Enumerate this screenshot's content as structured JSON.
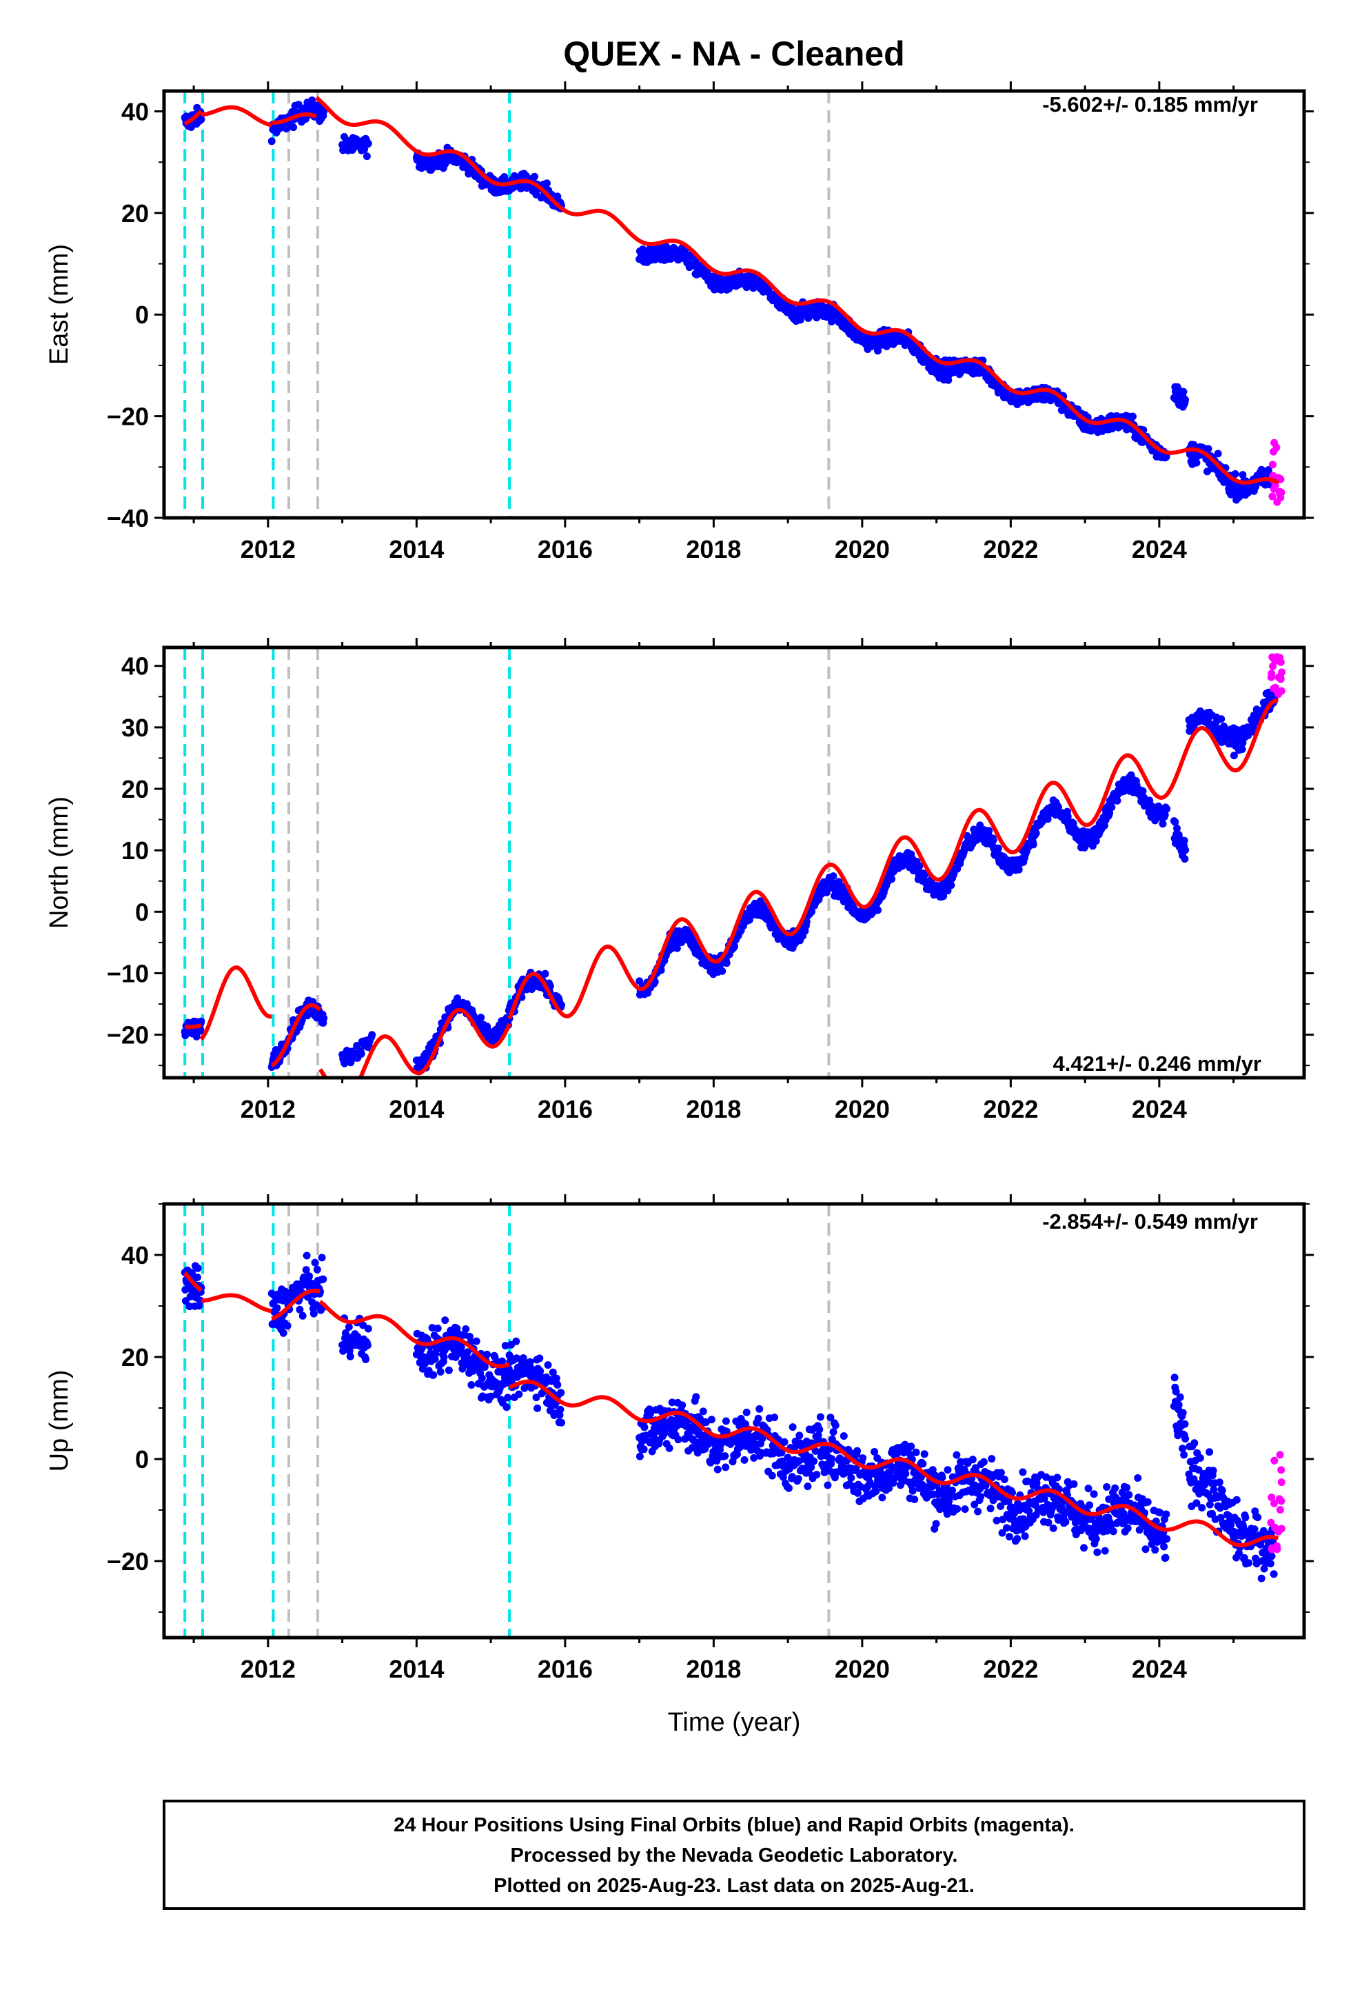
{
  "title": "QUEX  - NA - Cleaned",
  "xlabel": "Time (year)",
  "footer": {
    "line1": "24 Hour Positions Using Final Orbits (blue) and Rapid Orbits (magenta).",
    "line2": "Processed by the Nevada Geodetic Laboratory.",
    "line3": "Plotted on 2025-Aug-23. Last data on 2025-Aug-21."
  },
  "colors": {
    "final": "#0000ff",
    "rapid": "#ff00ff",
    "model": "#ff0000",
    "equipment_change": "#00e5e5",
    "earthquake": "#c0c0c0"
  },
  "chart_data": [
    {
      "type": "scatter",
      "component": "east",
      "ylabel": "East (mm)",
      "rate": "-5.602+/- 0.185 mm/yr",
      "xlim": [
        2010.6,
        2025.95
      ],
      "ylim": [
        -40,
        44
      ],
      "xticks": [
        "2012",
        "2014",
        "2016",
        "2018",
        "2020",
        "2022",
        "2024"
      ],
      "yticks": [
        "−40",
        "−20",
        "0",
        "20",
        "40"
      ],
      "ytick_values": [
        -40,
        -20,
        0,
        20,
        40
      ],
      "segments": [
        {
          "x0": 2010.88,
          "x1": 2011.1,
          "start": 38.5,
          "end": 40.5,
          "amp": 1.2,
          "noise": 1.2,
          "n": 40
        },
        {
          "x0": 2012.05,
          "x1": 2012.75,
          "start": 38.0,
          "end": 39.0,
          "amp": 1.5,
          "noise": 1.3,
          "n": 90
        },
        {
          "x0": 2013.0,
          "x1": 2013.35,
          "start": 34.5,
          "end": 33.0,
          "amp": 1.0,
          "noise": 1.2,
          "n": 40
        },
        {
          "x0": 2014.0,
          "x1": 2015.95,
          "start": 32.0,
          "end": 22.5,
          "amp": 1.5,
          "noise": 1.1,
          "n": 260
        },
        {
          "x0": 2017.0,
          "x1": 2024.1,
          "start": 13.5,
          "end": -26.0,
          "amp": 1.5,
          "noise": 1.2,
          "n": 950
        },
        {
          "x0": 2024.2,
          "x1": 2024.35,
          "start": -14.5,
          "end": -17.5,
          "amp": 0.5,
          "noise": 1.3,
          "n": 25
        },
        {
          "x0": 2024.4,
          "x1": 2025.55,
          "start": -28.5,
          "end": -34.5,
          "amp": 2.0,
          "noise": 1.5,
          "n": 160
        }
      ],
      "model_segments": [
        {
          "x0": 2010.88,
          "x1": 2011.1,
          "start": 38.0,
          "end": 41.0,
          "amp": 1.0
        },
        {
          "x0": 2011.1,
          "x1": 2012.05,
          "start": 40.5,
          "end": 38.5,
          "amp": 1.2
        },
        {
          "x0": 2012.05,
          "x1": 2012.65,
          "start": 39.0,
          "end": 38.0,
          "amp": 1.2
        },
        {
          "x0": 2012.65,
          "x1": 2025.6,
          "start": 41.5,
          "end": -34.5,
          "amp": 1.5
        }
      ],
      "rapid": {
        "x0": 2025.5,
        "x1": 2025.65,
        "center": -30.0,
        "spread": 7.0,
        "n": 18
      },
      "equipment_changes": [
        2010.88,
        2011.12,
        2012.07,
        2015.25
      ],
      "earthquakes": [
        2012.28,
        2012.67,
        2019.55
      ]
    },
    {
      "type": "scatter",
      "component": "north",
      "ylabel": "North (mm)",
      "rate": "4.421+/- 0.246 mm/yr",
      "xlim": [
        2010.6,
        2025.95
      ],
      "ylim": [
        -27,
        43
      ],
      "xticks": [
        "2012",
        "2014",
        "2016",
        "2018",
        "2020",
        "2022",
        "2024"
      ],
      "yticks": [
        "−20",
        "−10",
        "0",
        "10",
        "20",
        "30",
        "40"
      ],
      "ytick_values": [
        -20,
        -10,
        0,
        10,
        20,
        30,
        40
      ],
      "segments": [
        {
          "x0": 2010.88,
          "x1": 2011.1,
          "start": -19.0,
          "end": -18.5,
          "amp": 0.5,
          "noise": 1.0,
          "n": 40
        },
        {
          "x0": 2012.05,
          "x1": 2012.75,
          "start": -21.0,
          "end": -18.0,
          "amp": 3.0,
          "noise": 1.0,
          "n": 90
        },
        {
          "x0": 2013.0,
          "x1": 2013.4,
          "start": -23.0,
          "end": -21.5,
          "amp": 0.8,
          "noise": 1.0,
          "n": 40
        },
        {
          "x0": 2014.0,
          "x1": 2015.95,
          "start": -21.5,
          "end": -12.5,
          "amp": 3.5,
          "noise": 1.0,
          "n": 260
        },
        {
          "x0": 2017.0,
          "x1": 2024.1,
          "start": -9.5,
          "end": 19.5,
          "amp": 3.5,
          "noise": 1.0,
          "n": 950
        },
        {
          "x0": 2024.2,
          "x1": 2024.35,
          "start": 13.5,
          "end": 10.0,
          "amp": 0.5,
          "noise": 1.5,
          "n": 25
        },
        {
          "x0": 2024.4,
          "x1": 2025.55,
          "start": 28.5,
          "end": 32.0,
          "amp": 2.5,
          "noise": 1.2,
          "n": 160
        }
      ],
      "model_segments": [
        {
          "x0": 2010.88,
          "x1": 2011.1,
          "start": -18.5,
          "end": -18.0,
          "amp": 0.5
        },
        {
          "x0": 2011.1,
          "x1": 2012.05,
          "start": -16.0,
          "end": -12.0,
          "amp": 5.0
        },
        {
          "x0": 2012.05,
          "x1": 2012.7,
          "start": -21.5,
          "end": -18.0,
          "amp": 3.5
        },
        {
          "x0": 2012.7,
          "x1": 2015.25,
          "start": -28.0,
          "end": -17.0,
          "amp": 4.0
        },
        {
          "x0": 2015.25,
          "x1": 2025.6,
          "start": -16.0,
          "end": 30.0,
          "amp": 4.5
        }
      ],
      "rapid": {
        "x0": 2025.5,
        "x1": 2025.65,
        "center": 38.5,
        "spread": 3.5,
        "n": 18
      },
      "equipment_changes": [
        2010.88,
        2011.12,
        2012.07,
        2015.25
      ],
      "earthquakes": [
        2012.28,
        2012.67,
        2019.55
      ]
    },
    {
      "type": "scatter",
      "component": "up",
      "ylabel": "Up (mm)",
      "rate": "-2.854+/- 0.549 mm/yr",
      "xlim": [
        2010.6,
        2025.95
      ],
      "ylim": [
        -35,
        50
      ],
      "xticks": [
        "2012",
        "2014",
        "2016",
        "2018",
        "2020",
        "2022",
        "2024"
      ],
      "yticks": [
        "−20",
        "0",
        "20",
        "40"
      ],
      "ytick_values": [
        -20,
        0,
        20,
        40
      ],
      "segments": [
        {
          "x0": 2010.88,
          "x1": 2011.1,
          "start": 36.0,
          "end": 34.0,
          "amp": 1.5,
          "noise": 3.0,
          "n": 40
        },
        {
          "x0": 2012.05,
          "x1": 2012.75,
          "start": 30.5,
          "end": 32.0,
          "amp": 2.0,
          "noise": 3.2,
          "n": 90
        },
        {
          "x0": 2013.0,
          "x1": 2013.35,
          "start": 24.0,
          "end": 24.0,
          "amp": 1.0,
          "noise": 3.0,
          "n": 40
        },
        {
          "x0": 2014.0,
          "x1": 2015.95,
          "start": 23.0,
          "end": 13.0,
          "amp": 2.0,
          "noise": 3.5,
          "n": 260
        },
        {
          "x0": 2017.0,
          "x1": 2024.1,
          "start": 7.5,
          "end": -13.5,
          "amp": 2.0,
          "noise": 4.0,
          "n": 950
        },
        {
          "x0": 2024.2,
          "x1": 2024.35,
          "start": 12.0,
          "end": 2.0,
          "amp": 1.0,
          "noise": 4.0,
          "n": 25
        },
        {
          "x0": 2024.4,
          "x1": 2025.55,
          "start": -3.0,
          "end": -20.0,
          "amp": 2.0,
          "noise": 4.0,
          "n": 160
        }
      ],
      "model_segments": [
        {
          "x0": 2010.88,
          "x1": 2011.1,
          "start": 37.0,
          "end": 34.0,
          "amp": 1.0
        },
        {
          "x0": 2011.1,
          "x1": 2012.05,
          "start": 32.0,
          "end": 30.0,
          "amp": 1.0
        },
        {
          "x0": 2012.05,
          "x1": 2012.7,
          "start": 29.0,
          "end": 32.0,
          "amp": 1.5
        },
        {
          "x0": 2012.7,
          "x1": 2015.25,
          "start": 30.0,
          "end": 19.0,
          "amp": 1.5
        },
        {
          "x0": 2015.25,
          "x1": 2025.6,
          "start": 14.5,
          "end": -17.0,
          "amp": 1.5
        }
      ],
      "rapid": {
        "x0": 2025.5,
        "x1": 2025.65,
        "center": -8.0,
        "spread": 10.0,
        "n": 18
      },
      "equipment_changes": [
        2010.88,
        2011.12,
        2012.07,
        2015.25
      ],
      "earthquakes": [
        2012.28,
        2012.67,
        2019.55
      ]
    }
  ]
}
